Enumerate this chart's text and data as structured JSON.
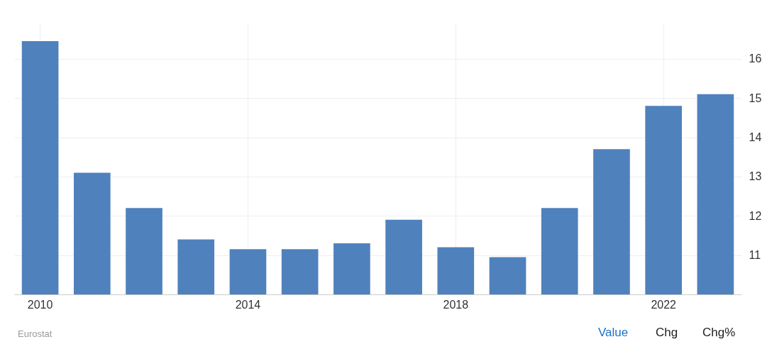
{
  "chart_data": {
    "type": "bar",
    "categories": [
      "2010",
      null,
      null,
      null,
      "2014",
      null,
      null,
      null,
      "2018",
      null,
      null,
      null,
      "2022",
      null
    ],
    "values": [
      16.45,
      13.1,
      12.2,
      11.4,
      11.15,
      11.15,
      11.3,
      11.9,
      11.2,
      10.95,
      12.2,
      13.7,
      14.8,
      15.1
    ],
    "color": "#4f81bd",
    "ylim": [
      10,
      16.9
    ],
    "yticks": [
      11,
      12,
      13,
      14,
      15,
      16
    ],
    "grid": true,
    "annotations": [
      "Eurostat",
      "Value",
      "Chg",
      "Chg%"
    ]
  }
}
